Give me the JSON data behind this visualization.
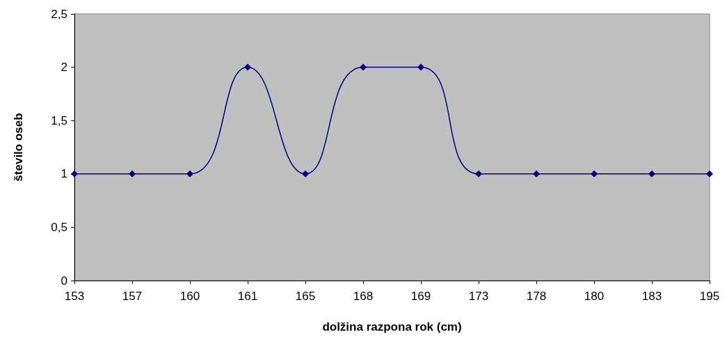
{
  "chart_data": {
    "type": "line",
    "xlabel": "dolžina razpona rok (cm)",
    "ylabel": "število oseb",
    "categories": [
      "153",
      "157",
      "160",
      "161",
      "165",
      "168",
      "169",
      "173",
      "178",
      "180",
      "183",
      "195"
    ],
    "series": [
      {
        "color": "#000080",
        "values": [
          1,
          1,
          1,
          2,
          1,
          2,
          2,
          1,
          1,
          1,
          1,
          1
        ]
      }
    ],
    "ylim": [
      0,
      2.5
    ],
    "yticks": [
      0,
      {
        "value": 0.5,
        "label": "0,5"
      },
      1,
      {
        "value": 1.5,
        "label": "1,5"
      },
      2,
      {
        "value": 2.5,
        "label": "2,5"
      }
    ],
    "grid": false,
    "marker": "diamond",
    "line_style": "solid"
  }
}
